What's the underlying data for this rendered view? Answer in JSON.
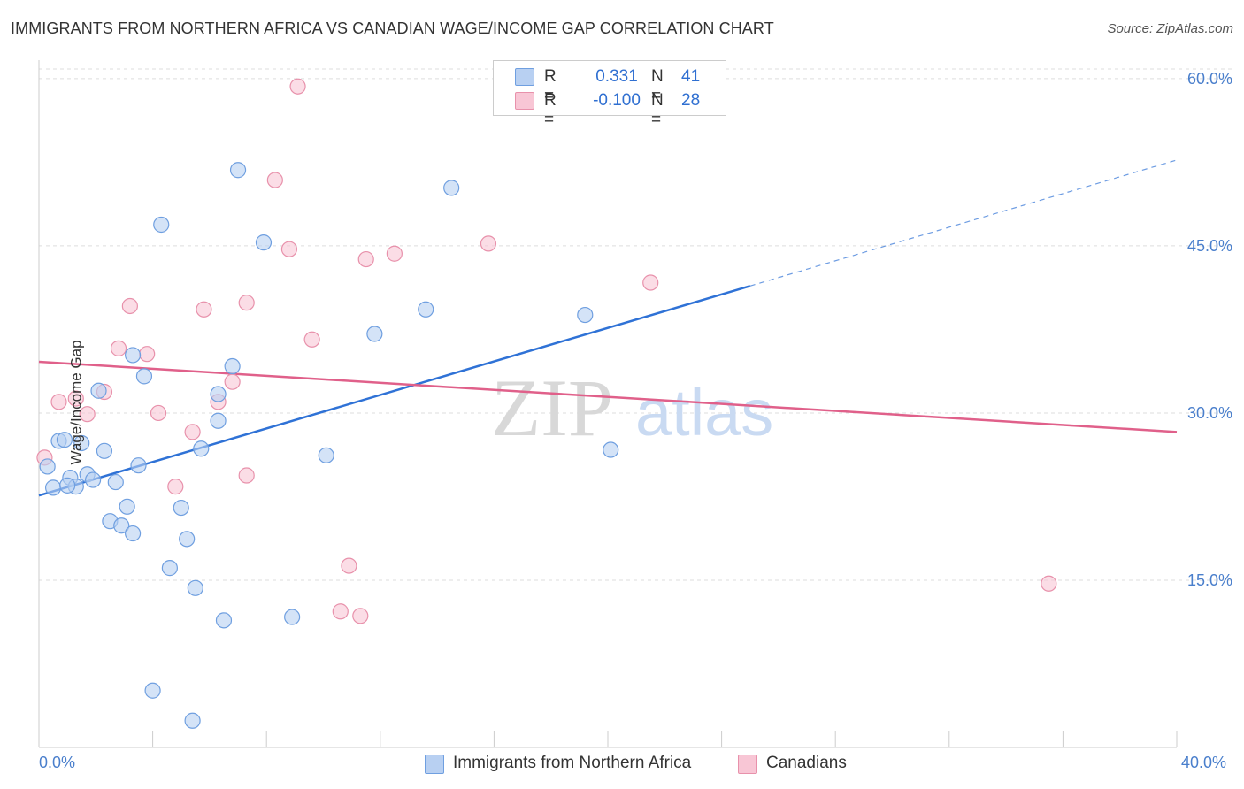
{
  "header": {
    "title": "IMMIGRANTS FROM NORTHERN AFRICA VS CANADIAN WAGE/INCOME GAP CORRELATION CHART",
    "source": "Source: ZipAtlas.com"
  },
  "legend_top": {
    "rows": [
      {
        "r_label": "R =",
        "r_value": "0.331",
        "n_label": "N =",
        "n_value": "41"
      },
      {
        "r_label": "R =",
        "r_value": "-0.100",
        "n_label": "N =",
        "n_value": "28"
      }
    ]
  },
  "watermark": {
    "zip": "ZIP",
    "atlas": "atlas"
  },
  "x_ticks": {
    "left": "0.0%",
    "right": "40.0%"
  },
  "colors": {
    "blue_fill": "#b8d0f2",
    "blue_stroke": "#6f9fe0",
    "blue_line": "#2f72d6",
    "pink_fill": "#f8c6d5",
    "pink_stroke": "#e891ab",
    "pink_line": "#e0608a",
    "grid": "#dddddd",
    "axis_tick_text": "#4a7fcc"
  },
  "chart_data": {
    "type": "scatter",
    "title": "IMMIGRANTS FROM NORTHERN AFRICA VS CANADIAN WAGE/INCOME GAP CORRELATION CHART",
    "xlabel": "",
    "ylabel": "Wage/Income Gap",
    "xlim": [
      0,
      40
    ],
    "ylim": [
      0,
      61.5
    ],
    "y_ticks": [
      15,
      30,
      45,
      60
    ],
    "y_tick_labels": [
      "15.0%",
      "30.0%",
      "45.0%",
      "60.0%"
    ],
    "x_tick_labels": [
      "0.0%",
      "40.0%"
    ],
    "grid": "horizontal dashed",
    "legend_position": "top-center and bottom",
    "series": [
      {
        "name": "Immigrants from Northern Africa",
        "color": "#b8d0f2",
        "r": 0.331,
        "n": 41,
        "points": [
          [
            0.3,
            25.2
          ],
          [
            0.5,
            23.3
          ],
          [
            0.7,
            27.5
          ],
          [
            0.9,
            27.6
          ],
          [
            1.1,
            24.2
          ],
          [
            1.3,
            23.4
          ],
          [
            1.5,
            27.3
          ],
          [
            1.7,
            24.5
          ],
          [
            1.9,
            24.0
          ],
          [
            2.1,
            32.0
          ],
          [
            2.3,
            26.6
          ],
          [
            2.5,
            20.3
          ],
          [
            2.7,
            23.8
          ],
          [
            2.9,
            19.9
          ],
          [
            3.1,
            21.6
          ],
          [
            3.3,
            19.2
          ],
          [
            3.5,
            25.3
          ],
          [
            3.7,
            33.3
          ],
          [
            3.3,
            35.2
          ],
          [
            4.3,
            46.9
          ],
          [
            4.0,
            5.1
          ],
          [
            4.6,
            16.1
          ],
          [
            5.0,
            21.5
          ],
          [
            5.2,
            18.7
          ],
          [
            5.5,
            14.3
          ],
          [
            5.7,
            26.8
          ],
          [
            6.3,
            29.3
          ],
          [
            6.3,
            31.7
          ],
          [
            6.5,
            11.4
          ],
          [
            6.8,
            34.2
          ],
          [
            7.0,
            51.8
          ],
          [
            7.9,
            45.3
          ],
          [
            8.9,
            11.7
          ],
          [
            10.1,
            26.2
          ],
          [
            11.8,
            37.1
          ],
          [
            13.6,
            39.3
          ],
          [
            14.5,
            50.2
          ],
          [
            19.2,
            38.8
          ],
          [
            20.1,
            26.7
          ],
          [
            5.4,
            2.4
          ],
          [
            1.0,
            23.5
          ]
        ],
        "trend": {
          "x0": 0,
          "y0": 22.6,
          "x1": 25,
          "y1": 41.4,
          "dashed_to_x": 40,
          "dashed_to_y": 52.7
        }
      },
      {
        "name": "Canadians",
        "color": "#f8c6d5",
        "r": -0.1,
        "n": 28,
        "points": [
          [
            0.2,
            26.0
          ],
          [
            0.7,
            31.0
          ],
          [
            1.3,
            31.3
          ],
          [
            1.7,
            29.9
          ],
          [
            2.3,
            31.9
          ],
          [
            2.8,
            35.8
          ],
          [
            3.2,
            39.6
          ],
          [
            3.8,
            35.3
          ],
          [
            4.2,
            30.0
          ],
          [
            4.8,
            23.4
          ],
          [
            5.4,
            28.3
          ],
          [
            5.8,
            39.3
          ],
          [
            6.3,
            31.0
          ],
          [
            6.8,
            32.8
          ],
          [
            7.3,
            39.9
          ],
          [
            7.3,
            24.4
          ],
          [
            8.3,
            50.9
          ],
          [
            8.8,
            44.7
          ],
          [
            9.1,
            59.3
          ],
          [
            9.6,
            36.6
          ],
          [
            10.6,
            12.2
          ],
          [
            10.9,
            16.3
          ],
          [
            11.3,
            11.8
          ],
          [
            11.5,
            43.8
          ],
          [
            12.5,
            44.3
          ],
          [
            15.8,
            45.2
          ],
          [
            21.5,
            41.7
          ],
          [
            35.5,
            14.7
          ]
        ],
        "trend": {
          "x0": 0,
          "y0": 34.6,
          "x1": 40,
          "y1": 28.3
        }
      }
    ]
  }
}
